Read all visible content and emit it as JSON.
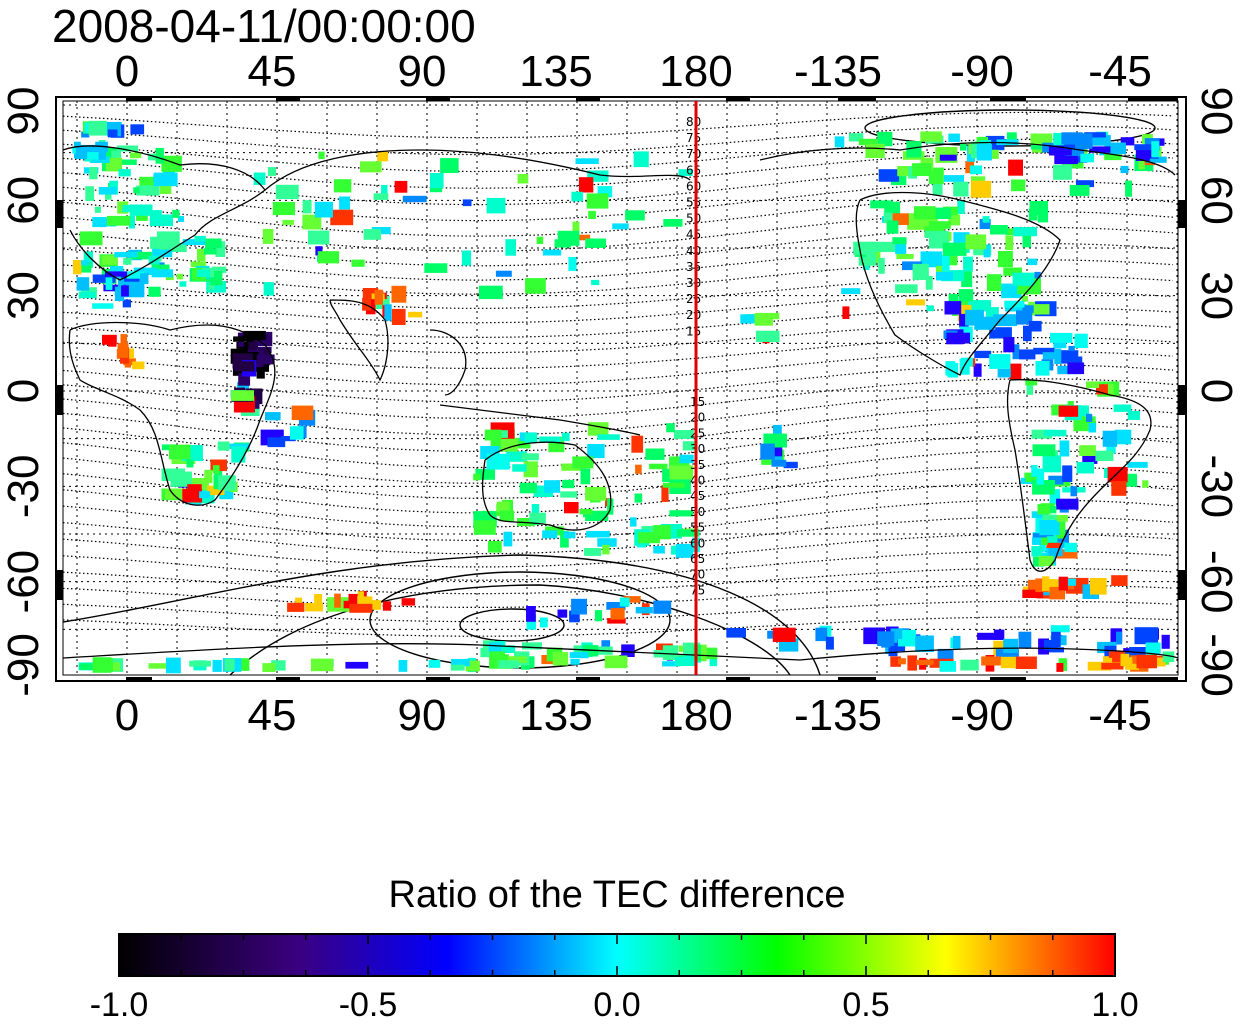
{
  "title": "2008-04-11/00:00:00",
  "map": {
    "top_lon_labels": [
      "0",
      "45",
      "90",
      "135",
      "180",
      "-135",
      "-90",
      "-45"
    ],
    "bottom_lon_labels": [
      "0",
      "45",
      "90",
      "135",
      "180",
      "-135",
      "-90",
      "-45"
    ],
    "left_lat_labels": [
      "90",
      "60",
      "30",
      "0",
      "-30",
      "-60",
      "-90"
    ],
    "right_lat_labels": [
      "90",
      "60",
      "30",
      "0",
      "-30",
      "-60",
      "-90"
    ],
    "meridian_line_lon": 180,
    "meridian_line_color": "#e00000",
    "contour_levels_north": [
      "80",
      "75",
      "70",
      "65",
      "60",
      "55",
      "50",
      "45",
      "40",
      "35",
      "30",
      "25",
      "20",
      "15"
    ],
    "contour_levels_south": [
      "15",
      "20",
      "25",
      "30",
      "35",
      "40",
      "45",
      "50",
      "55",
      "60",
      "65",
      "70",
      "75"
    ]
  },
  "colorbar": {
    "title": "Ratio of the TEC difference",
    "tick_labels": [
      "-1.0",
      "-0.5",
      "0.0",
      "0.5",
      "1.0"
    ],
    "range": [
      -1.0,
      1.0
    ],
    "colors": [
      "#000000",
      "#3a0080",
      "#0000ff",
      "#00ffff",
      "#00ff00",
      "#ffff00",
      "#ff0000"
    ]
  }
}
